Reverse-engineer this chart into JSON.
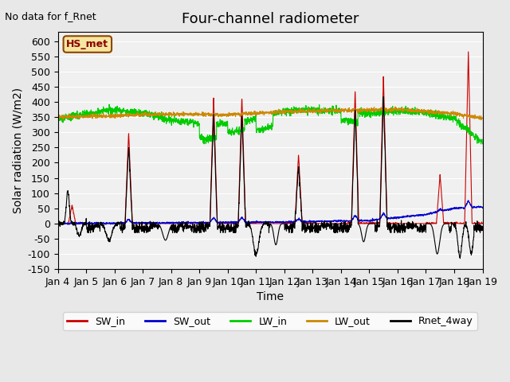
{
  "title": "Four-channel radiometer",
  "top_left_text": "No data for f_Rnet",
  "station_label": "HS_met",
  "xlabel": "Time",
  "ylabel": "Solar radiation (W/m2)",
  "ylim": [
    -150,
    630
  ],
  "yticks": [
    -150,
    -100,
    -50,
    0,
    50,
    100,
    150,
    200,
    250,
    300,
    350,
    400,
    450,
    500,
    550,
    600
  ],
  "xtick_labels": [
    "Jan 4",
    "Jan 5",
    "Jan 6",
    "Jan 7",
    "Jan 8",
    "Jan 9",
    "Jan 10",
    "Jan 11",
    "Jan 12",
    "Jan 13",
    "Jan 14",
    "Jan 15",
    "Jan 16",
    "Jan 17",
    "Jan 18",
    "Jan 19"
  ],
  "n_days": 15,
  "colors": {
    "SW_in": "#cc0000",
    "SW_out": "#0000cc",
    "LW_in": "#00cc00",
    "LW_out": "#cc8800",
    "Rnet_4way": "#000000"
  },
  "legend_entries": [
    "SW_in",
    "SW_out",
    "LW_in",
    "LW_out",
    "Rnet_4way"
  ],
  "background_color": "#e8e8e8",
  "plot_bg_color": "#f0f0f0",
  "grid_color": "#ffffff",
  "title_fontsize": 13,
  "label_fontsize": 10,
  "tick_fontsize": 9
}
